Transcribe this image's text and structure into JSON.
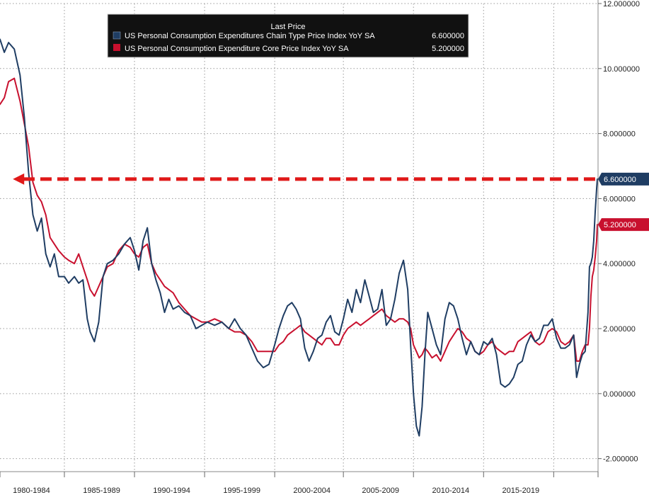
{
  "chart_data": {
    "type": "line",
    "title": "",
    "xlabel": "",
    "ylabel": "",
    "ylim": [
      -2.4,
      12.0
    ],
    "xlim": [
      1980.0,
      2021.8
    ],
    "y_axis_position": "right",
    "grid": true,
    "legend_placement": "top-left",
    "legend_header": "Last Price",
    "x_tick_labels": [
      "1980-1984",
      "1985-1989",
      "1990-1994",
      "1995-1999",
      "2000-2004",
      "2005-2009",
      "2010-2014",
      "2015-2019"
    ],
    "x_tick_centers": [
      1982.2,
      1987.1,
      1992.0,
      1996.9,
      2001.8,
      2006.6,
      2011.5,
      2016.4
    ],
    "x_tick_bounds": [
      1980.0,
      1984.5,
      1989.4,
      1994.3,
      1999.2,
      2004.0,
      2008.9,
      2013.8,
      2018.7,
      2021.8
    ],
    "y_ticks": [
      -2.0,
      0.0,
      2.0,
      4.0,
      6.0,
      8.0,
      10.0,
      12.0
    ],
    "y_tick_labels": [
      "-2.000000",
      "0.000000",
      "2.000000",
      "4.000000",
      "6.000000",
      "8.000000",
      "10.000000",
      "12.000000"
    ],
    "series": [
      {
        "name": "US Personal Consumption Expenditures Chain Type Price Index YoY SA",
        "last_value": "6.600000",
        "color": "#1f3d63",
        "x": [
          1980.0,
          1980.3,
          1980.6,
          1981.0,
          1981.4,
          1981.7,
          1982.0,
          1982.3,
          1982.6,
          1982.9,
          1983.2,
          1983.5,
          1983.8,
          1984.1,
          1984.5,
          1984.8,
          1985.2,
          1985.5,
          1985.8,
          1986.1,
          1986.3,
          1986.6,
          1986.9,
          1987.2,
          1987.5,
          1987.9,
          1988.3,
          1988.7,
          1989.1,
          1989.4,
          1989.7,
          1990.0,
          1990.3,
          1990.6,
          1990.9,
          1991.2,
          1991.5,
          1991.8,
          1992.1,
          1992.5,
          1992.9,
          1993.3,
          1993.7,
          1994.1,
          1994.5,
          1995.0,
          1995.5,
          1996.0,
          1996.4,
          1996.8,
          1997.2,
          1997.6,
          1998.0,
          1998.4,
          1998.8,
          1999.2,
          1999.5,
          1999.8,
          2000.1,
          2000.4,
          2000.7,
          2001.0,
          2001.3,
          2001.6,
          2001.9,
          2002.2,
          2002.5,
          2002.8,
          2003.1,
          2003.4,
          2003.7,
          2004.0,
          2004.3,
          2004.6,
          2004.9,
          2005.2,
          2005.5,
          2005.8,
          2006.1,
          2006.4,
          2006.7,
          2007.0,
          2007.3,
          2007.6,
          2007.9,
          2008.2,
          2008.5,
          2008.7,
          2008.9,
          2009.1,
          2009.3,
          2009.5,
          2009.7,
          2009.9,
          2010.2,
          2010.5,
          2010.8,
          2011.1,
          2011.4,
          2011.7,
          2012.0,
          2012.3,
          2012.6,
          2012.9,
          2013.2,
          2013.5,
          2013.8,
          2014.1,
          2014.4,
          2014.7,
          2015.0,
          2015.3,
          2015.6,
          2015.9,
          2016.2,
          2016.5,
          2016.8,
          2017.1,
          2017.4,
          2017.7,
          2018.0,
          2018.3,
          2018.6,
          2018.9,
          2019.2,
          2019.5,
          2019.8,
          2020.1,
          2020.3,
          2020.5,
          2020.7,
          2020.9,
          2021.1,
          2021.2,
          2021.3,
          2021.4,
          2021.5,
          2021.6,
          2021.7,
          2021.75
        ],
        "y": [
          10.9,
          10.5,
          10.8,
          10.6,
          9.8,
          8.5,
          6.8,
          5.5,
          5.0,
          5.4,
          4.3,
          3.9,
          4.3,
          3.6,
          3.6,
          3.4,
          3.6,
          3.4,
          3.5,
          2.3,
          1.9,
          1.6,
          2.2,
          3.6,
          4.0,
          4.1,
          4.3,
          4.6,
          4.8,
          4.4,
          3.8,
          4.7,
          5.1,
          4.0,
          3.5,
          3.1,
          2.5,
          2.9,
          2.6,
          2.7,
          2.5,
          2.4,
          2.0,
          2.1,
          2.2,
          2.1,
          2.2,
          2.0,
          2.3,
          2.0,
          1.8,
          1.4,
          1.0,
          0.8,
          0.9,
          1.5,
          2.0,
          2.4,
          2.7,
          2.8,
          2.6,
          2.3,
          1.4,
          1.0,
          1.3,
          1.7,
          1.8,
          2.2,
          2.4,
          1.9,
          1.8,
          2.3,
          2.9,
          2.5,
          3.2,
          2.8,
          3.5,
          3.0,
          2.5,
          2.6,
          3.2,
          2.1,
          2.3,
          2.9,
          3.7,
          4.1,
          3.2,
          1.5,
          0.0,
          -1.0,
          -1.3,
          -0.4,
          1.2,
          2.5,
          2.0,
          1.5,
          1.2,
          2.3,
          2.8,
          2.7,
          2.3,
          1.7,
          1.2,
          1.6,
          1.3,
          1.2,
          1.6,
          1.5,
          1.7,
          1.2,
          0.3,
          0.2,
          0.3,
          0.5,
          0.9,
          1.0,
          1.5,
          1.8,
          1.6,
          1.7,
          2.1,
          2.1,
          2.3,
          1.7,
          1.4,
          1.4,
          1.5,
          1.8,
          0.5,
          0.9,
          1.2,
          1.3,
          2.5,
          3.9,
          4.0,
          4.2,
          4.7,
          5.6,
          6.3,
          6.6
        ]
      },
      {
        "name": "US Personal Consumption Expenditure Core Price Index YoY SA",
        "last_value": "5.200000",
        "color": "#c8102e",
        "x": [
          1980.0,
          1980.3,
          1980.6,
          1981.0,
          1981.4,
          1981.7,
          1982.0,
          1982.3,
          1982.6,
          1982.9,
          1983.2,
          1983.5,
          1983.8,
          1984.1,
          1984.5,
          1984.8,
          1985.2,
          1985.5,
          1985.8,
          1986.1,
          1986.3,
          1986.6,
          1986.9,
          1987.2,
          1987.5,
          1987.9,
          1988.3,
          1988.7,
          1989.1,
          1989.4,
          1989.7,
          1990.0,
          1990.3,
          1990.6,
          1990.9,
          1991.2,
          1991.5,
          1991.8,
          1992.1,
          1992.5,
          1992.9,
          1993.3,
          1993.7,
          1994.1,
          1994.5,
          1995.0,
          1995.5,
          1996.0,
          1996.4,
          1996.8,
          1997.2,
          1997.6,
          1998.0,
          1998.4,
          1998.8,
          1999.2,
          1999.5,
          1999.8,
          2000.1,
          2000.4,
          2000.7,
          2001.0,
          2001.3,
          2001.6,
          2001.9,
          2002.2,
          2002.5,
          2002.8,
          2003.1,
          2003.4,
          2003.7,
          2004.0,
          2004.3,
          2004.6,
          2004.9,
          2005.2,
          2005.5,
          2005.8,
          2006.1,
          2006.4,
          2006.7,
          2007.0,
          2007.3,
          2007.6,
          2007.9,
          2008.2,
          2008.5,
          2008.7,
          2008.9,
          2009.1,
          2009.3,
          2009.5,
          2009.7,
          2009.9,
          2010.2,
          2010.5,
          2010.8,
          2011.1,
          2011.4,
          2011.7,
          2012.0,
          2012.3,
          2012.6,
          2012.9,
          2013.2,
          2013.5,
          2013.8,
          2014.1,
          2014.4,
          2014.7,
          2015.0,
          2015.3,
          2015.6,
          2015.9,
          2016.2,
          2016.5,
          2016.8,
          2017.1,
          2017.4,
          2017.7,
          2018.0,
          2018.3,
          2018.6,
          2018.9,
          2019.2,
          2019.5,
          2019.8,
          2020.1,
          2020.3,
          2020.5,
          2020.7,
          2020.9,
          2021.1,
          2021.2,
          2021.3,
          2021.4,
          2021.5,
          2021.6,
          2021.7,
          2021.75
        ],
        "y": [
          8.9,
          9.1,
          9.6,
          9.7,
          9.0,
          8.3,
          7.6,
          6.5,
          6.1,
          5.9,
          5.5,
          4.8,
          4.6,
          4.4,
          4.2,
          4.1,
          4.0,
          4.3,
          3.9,
          3.5,
          3.2,
          3.0,
          3.3,
          3.6,
          3.9,
          4.0,
          4.4,
          4.6,
          4.5,
          4.3,
          4.2,
          4.5,
          4.6,
          4.0,
          3.7,
          3.5,
          3.3,
          3.2,
          3.1,
          2.8,
          2.6,
          2.4,
          2.3,
          2.2,
          2.2,
          2.3,
          2.2,
          2.0,
          1.9,
          1.9,
          1.8,
          1.6,
          1.3,
          1.3,
          1.3,
          1.3,
          1.5,
          1.6,
          1.8,
          1.9,
          2.0,
          2.1,
          1.9,
          1.8,
          1.7,
          1.6,
          1.5,
          1.7,
          1.7,
          1.5,
          1.5,
          1.8,
          2.0,
          2.1,
          2.2,
          2.1,
          2.2,
          2.3,
          2.4,
          2.5,
          2.6,
          2.4,
          2.3,
          2.2,
          2.3,
          2.3,
          2.2,
          2.0,
          1.5,
          1.3,
          1.1,
          1.2,
          1.4,
          1.3,
          1.1,
          1.2,
          1.0,
          1.3,
          1.6,
          1.8,
          2.0,
          1.9,
          1.7,
          1.6,
          1.3,
          1.2,
          1.3,
          1.5,
          1.6,
          1.4,
          1.3,
          1.2,
          1.3,
          1.3,
          1.6,
          1.7,
          1.8,
          1.9,
          1.6,
          1.5,
          1.6,
          1.9,
          2.0,
          1.9,
          1.6,
          1.5,
          1.6,
          1.8,
          1.0,
          1.0,
          1.3,
          1.5,
          1.5,
          2.0,
          3.0,
          3.6,
          3.8,
          4.2,
          4.7,
          5.2
        ]
      }
    ],
    "reference_arrow": {
      "value": 6.6,
      "x_from": 2021.6,
      "x_to": 1980.9,
      "color": "#e01919"
    }
  }
}
